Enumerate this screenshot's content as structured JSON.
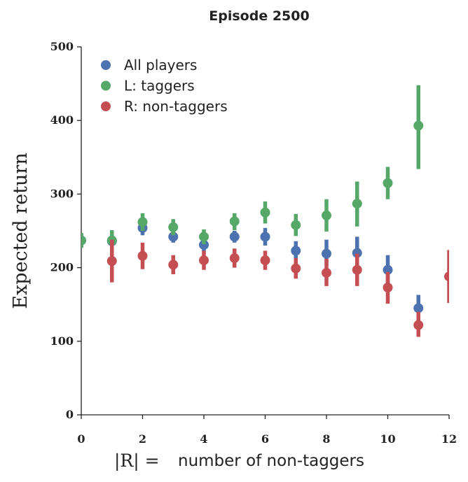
{
  "chart_data": {
    "type": "scatter",
    "title": "Episode 2500",
    "xlabel_math": "|R| =",
    "xlabel_text": "number of non-taggers",
    "ylabel": "Expected return",
    "xlim": [
      0,
      12
    ],
    "ylim": [
      0,
      500
    ],
    "xticks": [
      "0",
      "2",
      "4",
      "6",
      "8",
      "10",
      "12"
    ],
    "yticks": [
      "0",
      "100",
      "200",
      "300",
      "400",
      "500"
    ],
    "legend_position": "top-left",
    "grid": false,
    "series": [
      {
        "name": "All players",
        "color": "#4c72b0",
        "points": [
          {
            "x": 0,
            "y": 237,
            "lo": 227,
            "hi": 247
          },
          {
            "x": 1,
            "y": 236,
            "lo": 226,
            "hi": 246
          },
          {
            "x": 2,
            "y": 254,
            "lo": 244,
            "hi": 264
          },
          {
            "x": 3,
            "y": 242,
            "lo": 234,
            "hi": 250
          },
          {
            "x": 4,
            "y": 231,
            "lo": 222,
            "hi": 240
          },
          {
            "x": 5,
            "y": 242,
            "lo": 234,
            "hi": 250
          },
          {
            "x": 6,
            "y": 242,
            "lo": 230,
            "hi": 254
          },
          {
            "x": 7,
            "y": 223,
            "lo": 212,
            "hi": 236
          },
          {
            "x": 8,
            "y": 219,
            "lo": 203,
            "hi": 238
          },
          {
            "x": 9,
            "y": 220,
            "lo": 200,
            "hi": 242
          },
          {
            "x": 10,
            "y": 197,
            "lo": 178,
            "hi": 217
          },
          {
            "x": 11,
            "y": 145,
            "lo": 128,
            "hi": 163
          }
        ]
      },
      {
        "name": "L: taggers",
        "color": "#55a868",
        "points": [
          {
            "x": 0,
            "y": 237,
            "lo": 227,
            "hi": 247
          },
          {
            "x": 1,
            "y": 237,
            "lo": 224,
            "hi": 251
          },
          {
            "x": 2,
            "y": 262,
            "lo": 250,
            "hi": 274
          },
          {
            "x": 3,
            "y": 255,
            "lo": 244,
            "hi": 266
          },
          {
            "x": 4,
            "y": 242,
            "lo": 232,
            "hi": 252
          },
          {
            "x": 5,
            "y": 263,
            "lo": 251,
            "hi": 274
          },
          {
            "x": 6,
            "y": 275,
            "lo": 260,
            "hi": 290
          },
          {
            "x": 7,
            "y": 258,
            "lo": 243,
            "hi": 273
          },
          {
            "x": 8,
            "y": 271,
            "lo": 249,
            "hi": 293
          },
          {
            "x": 9,
            "y": 287,
            "lo": 256,
            "hi": 317
          },
          {
            "x": 10,
            "y": 315,
            "lo": 293,
            "hi": 337
          },
          {
            "x": 11,
            "y": 393,
            "lo": 334,
            "hi": 448
          }
        ]
      },
      {
        "name": "R: non-taggers",
        "color": "#c44e52",
        "points": [
          {
            "x": 1,
            "y": 209,
            "lo": 180,
            "hi": 238
          },
          {
            "x": 2,
            "y": 216,
            "lo": 198,
            "hi": 234
          },
          {
            "x": 3,
            "y": 204,
            "lo": 191,
            "hi": 217
          },
          {
            "x": 4,
            "y": 210,
            "lo": 197,
            "hi": 223
          },
          {
            "x": 5,
            "y": 213,
            "lo": 200,
            "hi": 226
          },
          {
            "x": 6,
            "y": 210,
            "lo": 197,
            "hi": 223
          },
          {
            "x": 7,
            "y": 199,
            "lo": 185,
            "hi": 213
          },
          {
            "x": 8,
            "y": 193,
            "lo": 175,
            "hi": 212
          },
          {
            "x": 9,
            "y": 197,
            "lo": 175,
            "hi": 219
          },
          {
            "x": 10,
            "y": 173,
            "lo": 151,
            "hi": 194
          },
          {
            "x": 11,
            "y": 122,
            "lo": 106,
            "hi": 140
          },
          {
            "x": 12,
            "y": 188,
            "lo": 152,
            "hi": 224
          }
        ]
      }
    ]
  }
}
